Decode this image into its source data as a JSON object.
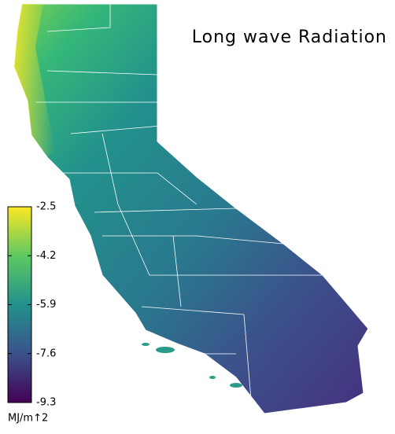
{
  "title": "Long wave Radiation",
  "colorbar": {
    "lim": [
      -9.3,
      -2.5
    ],
    "ticks": [
      -2.5,
      -4.2,
      -5.9,
      -7.6,
      -9.3
    ],
    "colormap": [
      "#440154",
      "#3b528b",
      "#21918c",
      "#5ec962",
      "#fde725"
    ],
    "label": "MJ/m↑2"
  }
}
